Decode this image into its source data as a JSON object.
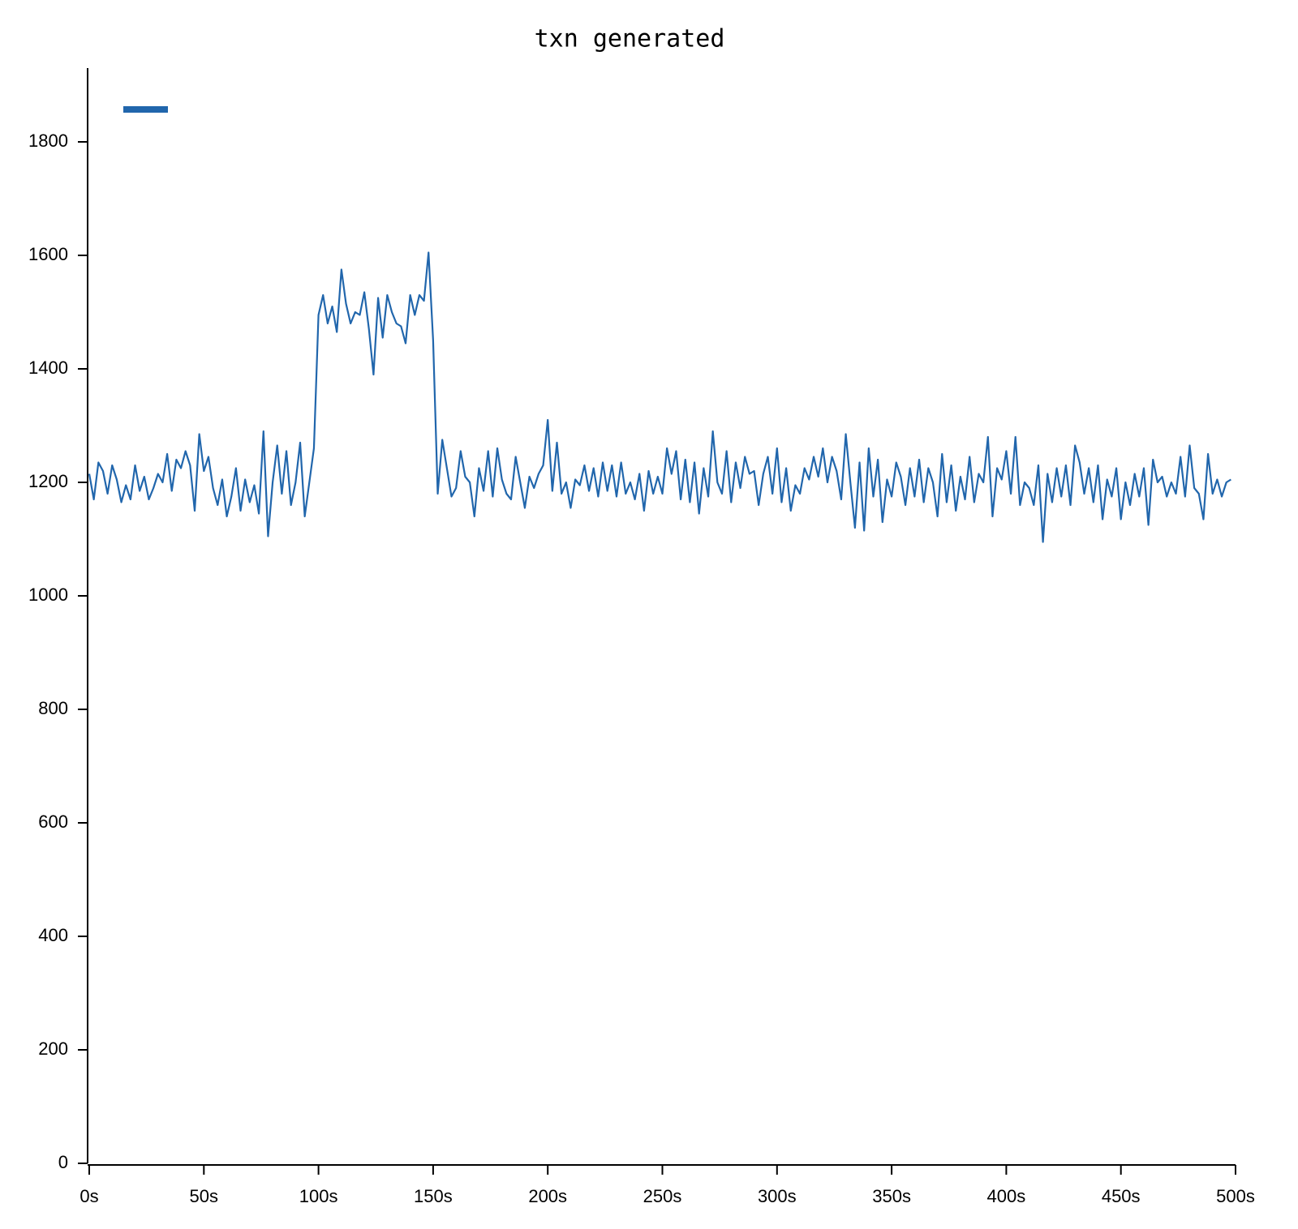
{
  "chart_data": {
    "type": "line",
    "title": "txn generated",
    "x": [
      0,
      2,
      4,
      6,
      8,
      10,
      12,
      14,
      16,
      18,
      20,
      22,
      24,
      26,
      28,
      30,
      32,
      34,
      36,
      38,
      40,
      42,
      44,
      46,
      48,
      50,
      52,
      54,
      56,
      58,
      60,
      62,
      64,
      66,
      68,
      70,
      72,
      74,
      76,
      78,
      80,
      82,
      84,
      86,
      88,
      90,
      92,
      94,
      96,
      98,
      100,
      102,
      104,
      106,
      108,
      110,
      112,
      114,
      116,
      118,
      120,
      122,
      124,
      126,
      128,
      130,
      132,
      134,
      136,
      138,
      140,
      142,
      144,
      146,
      148,
      150,
      152,
      154,
      156,
      158,
      160,
      162,
      164,
      166,
      168,
      170,
      172,
      174,
      176,
      178,
      180,
      182,
      184,
      186,
      188,
      190,
      192,
      194,
      196,
      198,
      200,
      202,
      204,
      206,
      208,
      210,
      212,
      214,
      216,
      218,
      220,
      222,
      224,
      226,
      228,
      230,
      232,
      234,
      236,
      238,
      240,
      242,
      244,
      246,
      248,
      250,
      252,
      254,
      256,
      258,
      260,
      262,
      264,
      266,
      268,
      270,
      272,
      274,
      276,
      278,
      280,
      282,
      284,
      286,
      288,
      290,
      292,
      294,
      296,
      298,
      300,
      302,
      304,
      306,
      308,
      310,
      312,
      314,
      316,
      318,
      320,
      322,
      324,
      326,
      328,
      330,
      332,
      334,
      336,
      338,
      340,
      342,
      344,
      346,
      348,
      350,
      352,
      354,
      356,
      358,
      360,
      362,
      364,
      366,
      368,
      370,
      372,
      374,
      376,
      378,
      380,
      382,
      384,
      386,
      388,
      390,
      392,
      394,
      396,
      398,
      400,
      402,
      404,
      406,
      408,
      410,
      412,
      414,
      416,
      418,
      420,
      422,
      424,
      426,
      428,
      430,
      432,
      434,
      436,
      438,
      440,
      442,
      444,
      446,
      448,
      450,
      452,
      454,
      456,
      458,
      460,
      462,
      464,
      466,
      468,
      470,
      472,
      474,
      476,
      478,
      480,
      482,
      484,
      486,
      488,
      490,
      492,
      494,
      496,
      498
    ],
    "series": [
      {
        "color": "#2166ac",
        "values": [
          1215,
          1170,
          1235,
          1220,
          1180,
          1230,
          1205,
          1165,
          1195,
          1170,
          1230,
          1185,
          1210,
          1170,
          1190,
          1215,
          1200,
          1250,
          1185,
          1240,
          1225,
          1255,
          1230,
          1150,
          1285,
          1220,
          1245,
          1190,
          1160,
          1205,
          1140,
          1175,
          1225,
          1150,
          1205,
          1165,
          1195,
          1145,
          1290,
          1105,
          1200,
          1265,
          1180,
          1255,
          1160,
          1200,
          1270,
          1140,
          1200,
          1260,
          1495,
          1530,
          1480,
          1510,
          1465,
          1575,
          1515,
          1480,
          1500,
          1495,
          1535,
          1470,
          1390,
          1525,
          1455,
          1530,
          1500,
          1480,
          1475,
          1445,
          1530,
          1495,
          1530,
          1520,
          1605,
          1450,
          1180,
          1275,
          1225,
          1175,
          1190,
          1255,
          1210,
          1200,
          1140,
          1225,
          1185,
          1255,
          1175,
          1260,
          1205,
          1180,
          1170,
          1245,
          1200,
          1155,
          1210,
          1190,
          1215,
          1230,
          1310,
          1185,
          1270,
          1180,
          1200,
          1155,
          1205,
          1195,
          1230,
          1185,
          1225,
          1175,
          1235,
          1185,
          1230,
          1175,
          1235,
          1180,
          1200,
          1170,
          1215,
          1150,
          1220,
          1180,
          1210,
          1180,
          1260,
          1215,
          1255,
          1170,
          1240,
          1165,
          1235,
          1145,
          1225,
          1175,
          1290,
          1200,
          1180,
          1255,
          1165,
          1235,
          1190,
          1245,
          1215,
          1220,
          1160,
          1215,
          1245,
          1180,
          1260,
          1165,
          1225,
          1150,
          1195,
          1180,
          1225,
          1205,
          1245,
          1210,
          1260,
          1200,
          1245,
          1220,
          1170,
          1285,
          1200,
          1120,
          1235,
          1115,
          1260,
          1175,
          1240,
          1130,
          1205,
          1175,
          1235,
          1210,
          1160,
          1225,
          1175,
          1240,
          1165,
          1225,
          1200,
          1140,
          1250,
          1165,
          1230,
          1150,
          1210,
          1170,
          1245,
          1165,
          1215,
          1200,
          1280,
          1140,
          1225,
          1205,
          1255,
          1180,
          1280,
          1160,
          1200,
          1190,
          1160,
          1230,
          1095,
          1215,
          1165,
          1225,
          1175,
          1230,
          1160,
          1265,
          1235,
          1180,
          1225,
          1165,
          1230,
          1135,
          1205,
          1175,
          1225,
          1135,
          1200,
          1160,
          1215,
          1175,
          1225,
          1125,
          1240,
          1200,
          1210,
          1175,
          1200,
          1180,
          1245,
          1175,
          1265,
          1190,
          1180,
          1135,
          1250,
          1180,
          1205,
          1175,
          1200,
          1205
        ]
      }
    ],
    "xlim": [
      0,
      500
    ],
    "xticks": [
      {
        "value": 0,
        "label": "0s"
      },
      {
        "value": 50,
        "label": "50s"
      },
      {
        "value": 100,
        "label": "100s"
      },
      {
        "value": 150,
        "label": "150s"
      },
      {
        "value": 200,
        "label": "200s"
      },
      {
        "value": 250,
        "label": "250s"
      },
      {
        "value": 300,
        "label": "300s"
      },
      {
        "value": 350,
        "label": "350s"
      },
      {
        "value": 400,
        "label": "400s"
      },
      {
        "value": 450,
        "label": "450s"
      },
      {
        "value": 500,
        "label": "500s"
      }
    ],
    "ylim": [
      0,
      1930
    ],
    "yticks": [
      0,
      200,
      400,
      600,
      800,
      1000,
      1200,
      1400,
      1600,
      1800
    ],
    "grid": false
  }
}
